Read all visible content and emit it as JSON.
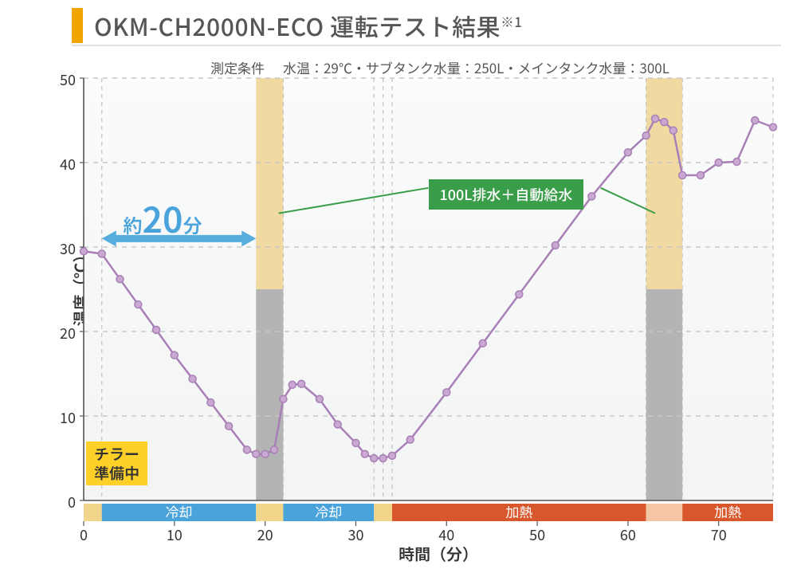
{
  "title": "OKM-CH2000N-ECO 運転テスト結果",
  "title_sup": "※1",
  "conditions_label": "測定条件",
  "conditions_value": "水温：29℃・サブタンク水量：250L・メインタンク水量：300L",
  "colors": {
    "title_accent": "#f2a500",
    "title_text": "#565656",
    "underline": "#e2e2e2",
    "axis": "#555555",
    "grid": "#c7c7c7",
    "vgrid_dash": "#c2c2c2",
    "plot_bg_top": "#fafbfb",
    "plot_bg_bottom": "#f3f4f4",
    "band_top": "#f1d9a2",
    "band_bottom": "#b4b4b4",
    "line": "#a87fb6",
    "marker_stroke": "#a87fb6",
    "marker_fill": "#c9a8d2",
    "arrow": "#57addd",
    "arrow_text": "#4ba3db",
    "callout_green": "#3a9d4a",
    "callout_yellow": "#ffd028",
    "phase_blue": "#4ba3db",
    "phase_orange": "#d9572c",
    "phase_pale_yellow": "#f0d58a",
    "phase_pale_orange": "#f5c6a3"
  },
  "chart": {
    "type": "line",
    "xlim": [
      0,
      76
    ],
    "ylim": [
      0,
      50
    ],
    "xticks": [
      0,
      10,
      20,
      30,
      40,
      50,
      60,
      70
    ],
    "yticks": [
      0,
      10,
      20,
      30,
      40,
      50
    ],
    "xlabel": "時間（分）",
    "ylabel": "温度（℃）",
    "label_fontsize": 20,
    "tick_fontsize": 18,
    "line_width": 2.5,
    "marker_radius": 4.5,
    "bg_gradient": true,
    "minor_vlines": [
      2,
      22,
      32,
      33,
      34,
      62,
      66,
      76
    ],
    "series_x": [
      0,
      2,
      4,
      6,
      8,
      10,
      12,
      14,
      16,
      18,
      19,
      20,
      21,
      22,
      23,
      24,
      26,
      28,
      30,
      31,
      32,
      33,
      34,
      36,
      40,
      44,
      48,
      52,
      56,
      60,
      62,
      63,
      64,
      65,
      66,
      68,
      70,
      72,
      74,
      76
    ],
    "series_y": [
      29.5,
      29.2,
      26.2,
      23.2,
      20.2,
      17.2,
      14.4,
      11.6,
      8.8,
      6.0,
      5.5,
      5.5,
      6.0,
      12.0,
      13.7,
      13.8,
      12.0,
      9.0,
      6.8,
      5.5,
      5.0,
      5.0,
      5.3,
      7.2,
      12.8,
      18.6,
      24.4,
      30.2,
      36.0,
      41.2,
      43.2,
      45.2,
      44.8,
      43.8,
      38.5,
      38.5,
      40.0,
      40.1,
      45.0,
      44.2
    ],
    "bands": [
      {
        "x_from": 19,
        "x_to": 22,
        "split_y": 25
      },
      {
        "x_from": 62,
        "x_to": 66,
        "split_y": 25
      }
    ],
    "arrow": {
      "x_from": 2,
      "x_to": 19,
      "y": 31,
      "height": 20
    },
    "arrow_label": {
      "pre": "約",
      "big": "20",
      "suf": "分"
    },
    "green_callout": "100L排水＋自動給水",
    "yellow_callout_line1": "チラー",
    "yellow_callout_line2": "準備中",
    "phase_bar": {
      "height": 22,
      "segments": [
        {
          "from": 0,
          "to": 2,
          "color_key": "phase_pale_yellow",
          "label": ""
        },
        {
          "from": 2,
          "to": 19,
          "color_key": "phase_blue",
          "label": "冷却"
        },
        {
          "from": 19,
          "to": 22,
          "color_key": "phase_pale_yellow",
          "label": ""
        },
        {
          "from": 22,
          "to": 32,
          "color_key": "phase_blue",
          "label": "冷却"
        },
        {
          "from": 32,
          "to": 34,
          "color_key": "phase_pale_yellow",
          "label": ""
        },
        {
          "from": 34,
          "to": 62,
          "color_key": "phase_orange",
          "label": "加熱"
        },
        {
          "from": 62,
          "to": 66,
          "color_key": "phase_pale_orange",
          "label": ""
        },
        {
          "from": 66,
          "to": 76,
          "color_key": "phase_orange",
          "label": "加熱"
        }
      ]
    }
  }
}
